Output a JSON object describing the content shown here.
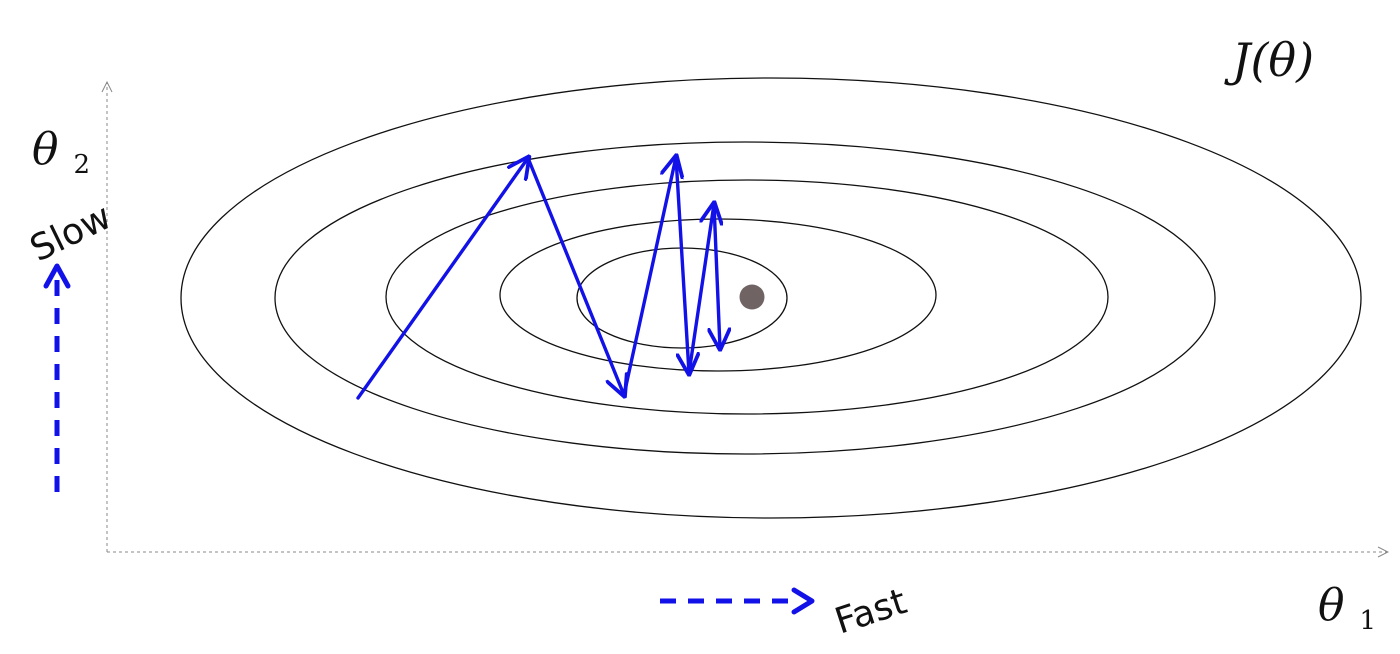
{
  "diagram": {
    "cost_label": "J(θ)",
    "y_axis_symbol": "θ",
    "y_axis_subscript": "2",
    "x_axis_symbol": "θ",
    "x_axis_subscript": "1",
    "slow_label": "Slow",
    "fast_label": "Fast",
    "colors": {
      "path": "#1212e8",
      "contour": "#111111",
      "axis": "#888888",
      "minimum": "#6f6463"
    },
    "contour_count": 5
  }
}
